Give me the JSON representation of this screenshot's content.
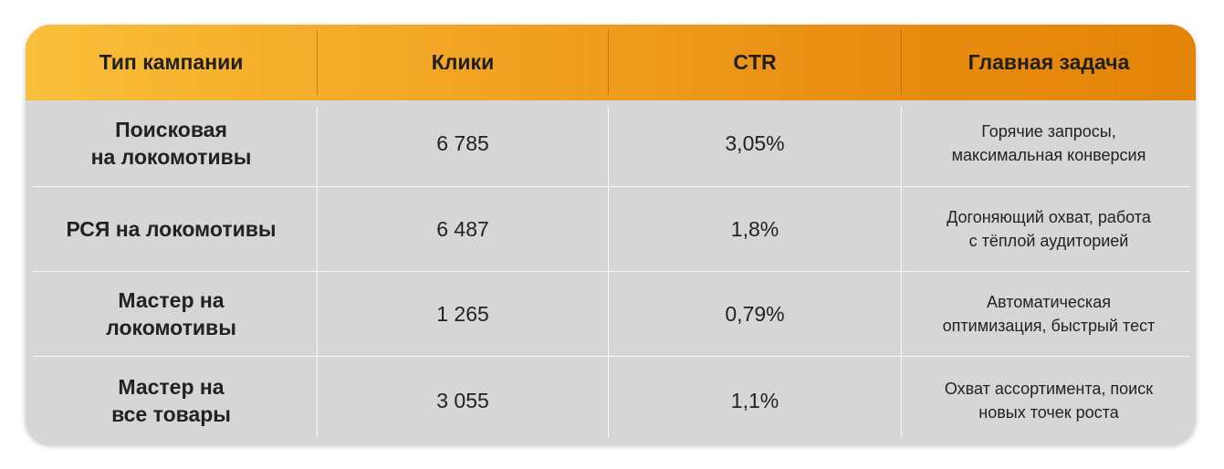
{
  "table": {
    "headers": {
      "type": "Тип кампании",
      "clicks": "Клики",
      "ctr": "CTR",
      "task": "Главная задача"
    },
    "rows": [
      {
        "type_lines": [
          "Поисковая",
          "на локомотивы"
        ],
        "clicks": "6 785",
        "ctr": "3,05%",
        "task_lines": [
          "Горячие запросы,",
          "максимальная конверсия"
        ]
      },
      {
        "type_lines": [
          "РСЯ на локомотивы"
        ],
        "clicks": "6 487",
        "ctr": "1,8%",
        "task_lines": [
          "Догоняющий охват, работа",
          "с тёплой аудиторией"
        ]
      },
      {
        "type_lines": [
          "Мастер на",
          "локомотивы"
        ],
        "clicks": "1 265",
        "ctr": "0,79%",
        "task_lines": [
          "Автоматическая",
          "оптимизация, быстрый тест"
        ]
      },
      {
        "type_lines": [
          "Мастер на",
          "все товары"
        ],
        "clicks": "3 055",
        "ctr": "1,1%",
        "task_lines": [
          "Охват ассортимента, поиск",
          "новых точек роста"
        ]
      }
    ]
  },
  "colors": {
    "header_gradient_start": "#f9bf3a",
    "header_gradient_end": "#e38408",
    "body_background": "#d6d6d6"
  }
}
